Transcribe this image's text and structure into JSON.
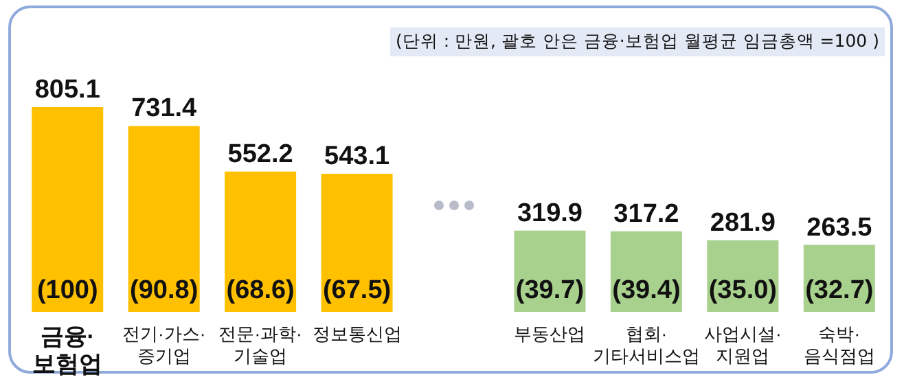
{
  "chart_data": {
    "type": "bar",
    "categories": [
      "금융·\n보험업",
      "전기·가스·\n증기업",
      "전문·과학·\n기술업",
      "정보통신업",
      null,
      "부동산업",
      "협회·\n기타서비스업",
      "사업시설·\n지원업",
      "숙박·\n음식점업"
    ],
    "values": [
      805.1,
      731.4,
      552.2,
      543.1,
      null,
      319.9,
      317.2,
      281.9,
      263.5
    ],
    "colors": [
      "#ffc000",
      "#ffc000",
      "#ffc000",
      "#ffc000",
      null,
      "#a9d18e",
      "#a9d18e",
      "#a9d18e",
      "#a9d18e"
    ],
    "data_labels": true,
    "annotations": [
      "(단위 : 만원, 괄호 안은 금융·보험업 월평균 임금총액 =100 )",
      "(100)",
      "(90.8)",
      "(68.6)",
      "(67.5)",
      "(39.7)",
      "(39.4)",
      "(35.0)",
      "(32.7)"
    ]
  }
}
